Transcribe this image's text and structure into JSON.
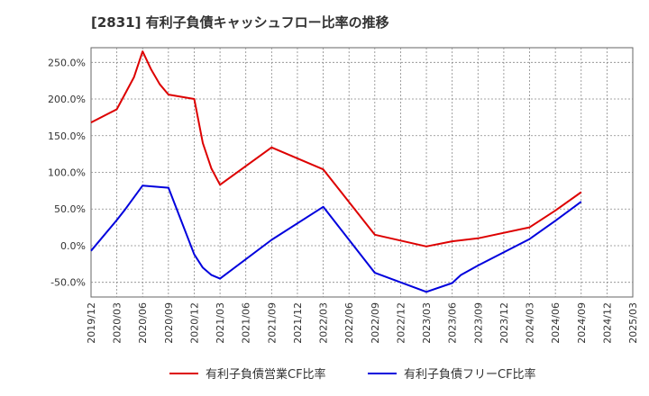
{
  "title": "[2831]  有利子負債キャッシュフロー比率の推移",
  "chart_data": {
    "type": "line",
    "title": "[2831]  有利子負債キャッシュフロー比率の推移",
    "x": [
      "2019/12",
      "2020/03",
      "2020/06",
      "2020/09",
      "2020/12",
      "2021/03",
      "2021/06",
      "2021/09",
      "2021/12",
      "2022/03",
      "2022/06",
      "2022/09",
      "2022/12",
      "2023/03",
      "2023/06",
      "2023/09",
      "2023/12",
      "2024/03",
      "2024/06",
      "2024/09",
      "2024/12",
      "2025/03"
    ],
    "yticks": [
      "250.0%",
      "200.0%",
      "150.0%",
      "100.0%",
      "50.0%",
      "0.0%",
      "-50.0%"
    ],
    "ylim": [
      -70,
      270
    ],
    "grid": true,
    "legend_position": "bottom",
    "series": [
      {
        "name": "有利子負債営業CF比率",
        "color": "#dd0000",
        "points": [
          {
            "x": "2019/12",
            "y": 168
          },
          {
            "x": "2020/03",
            "y": 186
          },
          {
            "x": "2020/05",
            "y": 230
          },
          {
            "x": "2020/06",
            "y": 265
          },
          {
            "x": "2020/07",
            "y": 240
          },
          {
            "x": "2020/08",
            "y": 220
          },
          {
            "x": "2020/09",
            "y": 206
          },
          {
            "x": "2020/12",
            "y": 200
          },
          {
            "x": "2021/01",
            "y": 140
          },
          {
            "x": "2021/02",
            "y": 105
          },
          {
            "x": "2021/03",
            "y": 83
          },
          {
            "x": "2021/09",
            "y": 134
          },
          {
            "x": "2022/03",
            "y": 104
          },
          {
            "x": "2022/09",
            "y": 15
          },
          {
            "x": "2023/03",
            "y": -1
          },
          {
            "x": "2023/06",
            "y": 6
          },
          {
            "x": "2023/09",
            "y": 10
          },
          {
            "x": "2024/03",
            "y": 25
          },
          {
            "x": "2024/06",
            "y": 48
          },
          {
            "x": "2024/09",
            "y": 73
          }
        ]
      },
      {
        "name": "有利子負債フリーCF比率",
        "color": "#0000dd",
        "points": [
          {
            "x": "2019/12",
            "y": -7
          },
          {
            "x": "2020/03",
            "y": 35
          },
          {
            "x": "2020/04",
            "y": 50
          },
          {
            "x": "2020/06",
            "y": 82
          },
          {
            "x": "2020/09",
            "y": 79
          },
          {
            "x": "2020/12",
            "y": -12
          },
          {
            "x": "2021/01",
            "y": -30
          },
          {
            "x": "2021/02",
            "y": -40
          },
          {
            "x": "2021/03",
            "y": -45
          },
          {
            "x": "2021/09",
            "y": 8
          },
          {
            "x": "2022/03",
            "y": 53
          },
          {
            "x": "2022/09",
            "y": -37
          },
          {
            "x": "2023/03",
            "y": -63
          },
          {
            "x": "2023/06",
            "y": -51
          },
          {
            "x": "2023/07",
            "y": -40
          },
          {
            "x": "2023/09",
            "y": -27
          },
          {
            "x": "2024/03",
            "y": 9
          },
          {
            "x": "2024/06",
            "y": 34
          },
          {
            "x": "2024/09",
            "y": 60
          }
        ]
      }
    ]
  }
}
